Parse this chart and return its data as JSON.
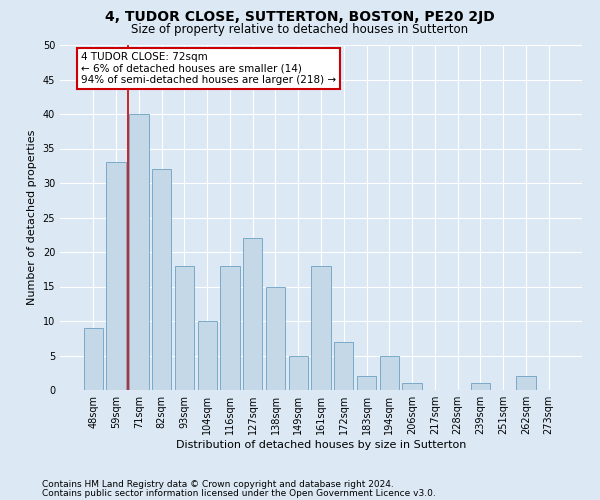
{
  "title": "4, TUDOR CLOSE, SUTTERTON, BOSTON, PE20 2JD",
  "subtitle": "Size of property relative to detached houses in Sutterton",
  "xlabel": "Distribution of detached houses by size in Sutterton",
  "ylabel": "Number of detached properties",
  "categories": [
    "48sqm",
    "59sqm",
    "71sqm",
    "82sqm",
    "93sqm",
    "104sqm",
    "116sqm",
    "127sqm",
    "138sqm",
    "149sqm",
    "161sqm",
    "172sqm",
    "183sqm",
    "194sqm",
    "206sqm",
    "217sqm",
    "228sqm",
    "239sqm",
    "251sqm",
    "262sqm",
    "273sqm"
  ],
  "values": [
    9,
    33,
    40,
    32,
    18,
    10,
    18,
    22,
    15,
    5,
    18,
    7,
    2,
    5,
    1,
    0,
    0,
    1,
    0,
    2,
    0
  ],
  "bar_color": "#c5d8e8",
  "bar_edge_color": "#7aaac8",
  "annotation_text": "4 TUDOR CLOSE: 72sqm\n← 6% of detached houses are smaller (14)\n94% of semi-detached houses are larger (218) →",
  "annotation_box_color": "#ffffff",
  "annotation_box_edge": "#cc0000",
  "vline_color": "#cc0000",
  "vline_x": 1.5,
  "ylim": [
    0,
    50
  ],
  "yticks": [
    0,
    5,
    10,
    15,
    20,
    25,
    30,
    35,
    40,
    45,
    50
  ],
  "background_color": "#dce9f5",
  "plot_bg_color": "#dce9f5",
  "grid_color": "#ffffff",
  "footer_line1": "Contains HM Land Registry data © Crown copyright and database right 2024.",
  "footer_line2": "Contains public sector information licensed under the Open Government Licence v3.0.",
  "title_fontsize": 10,
  "subtitle_fontsize": 8.5,
  "xlabel_fontsize": 8,
  "ylabel_fontsize": 8,
  "tick_fontsize": 7,
  "footer_fontsize": 6.5,
  "annotation_fontsize": 7.5
}
